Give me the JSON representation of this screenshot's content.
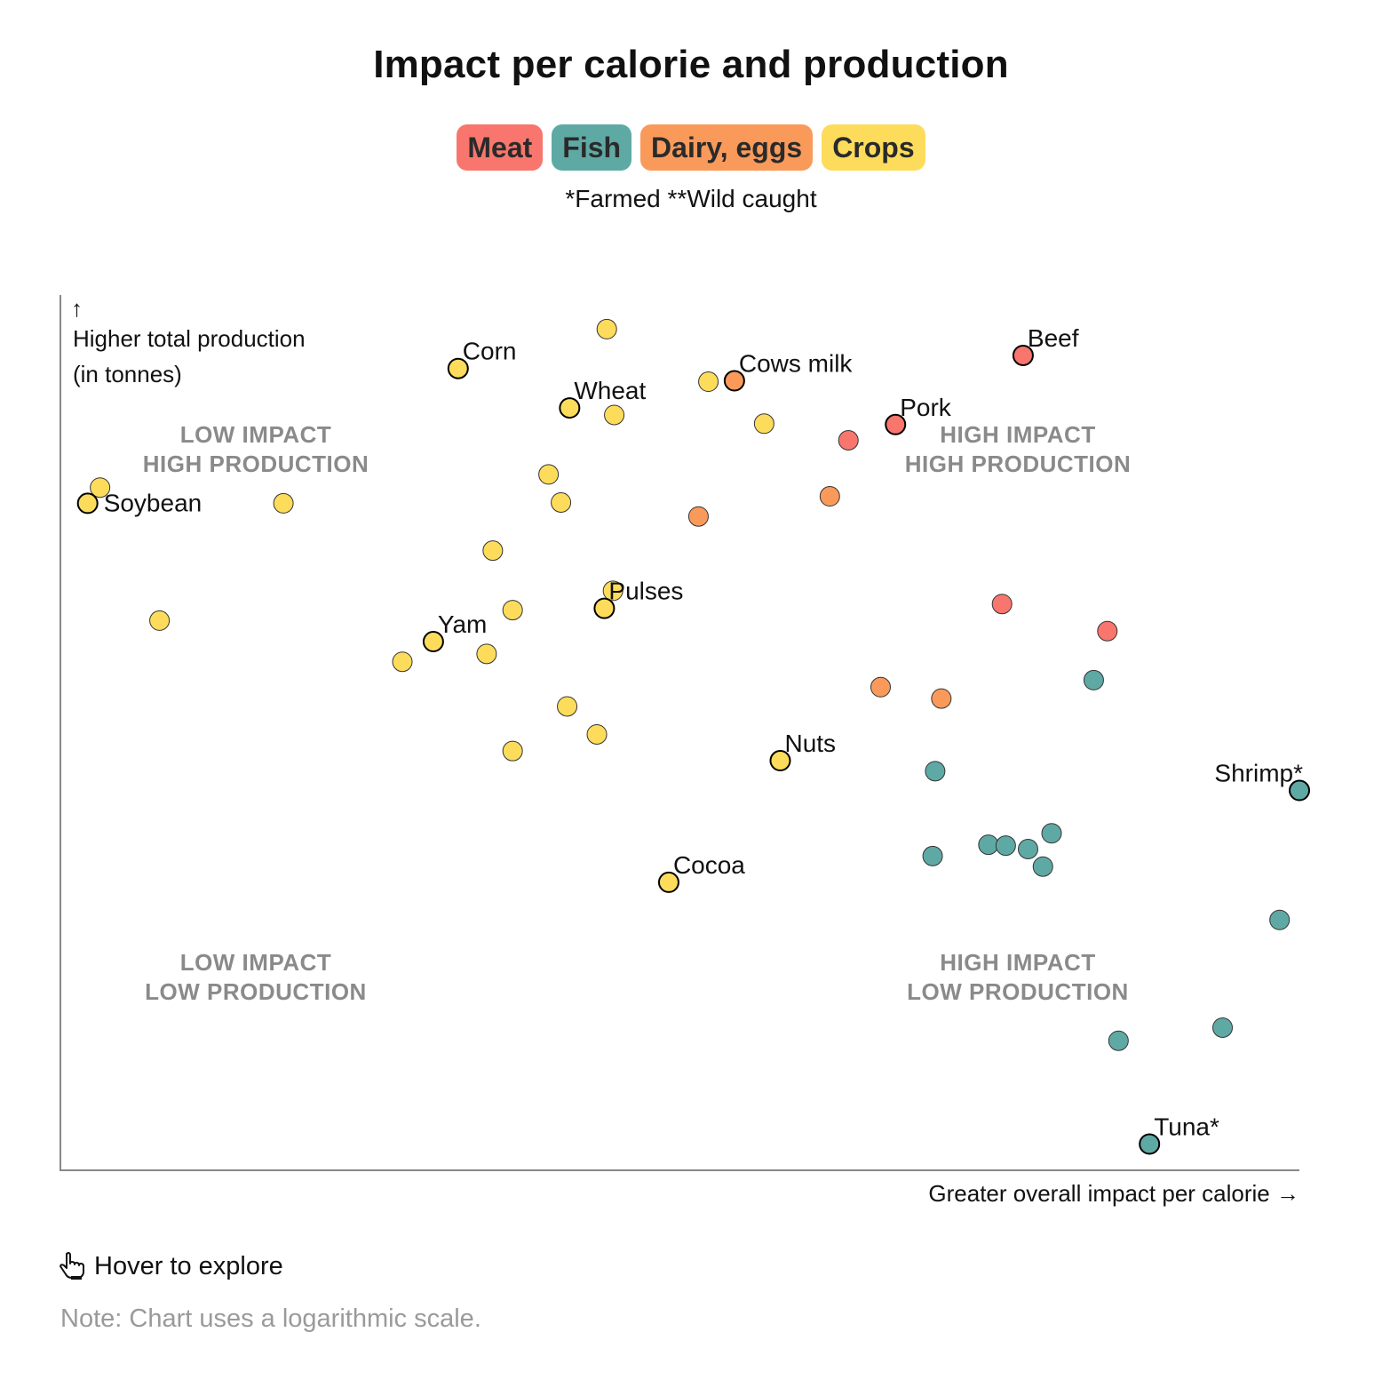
{
  "title": "Impact per calorie and production",
  "legend": [
    {
      "label": "Meat",
      "color": "#f8766d"
    },
    {
      "label": "Fish",
      "color": "#5fa9a5"
    },
    {
      "label": "Dairy, eggs",
      "color": "#fa9a5a"
    },
    {
      "label": "Crops",
      "color": "#fddc5c"
    }
  ],
  "footnote": "*Farmed **Wild caught",
  "hover_text": "Hover to explore",
  "hover_icon": "pointer-hand-icon",
  "note": "Note: Chart uses a logarithmic scale.",
  "chart_data": {
    "type": "scatter",
    "ylabel": [
      "↑",
      "Higher total production",
      "(in tonnes)"
    ],
    "xlabel": "Greater overall impact per calorie →",
    "log_scale": true,
    "xlim": [
      0,
      100
    ],
    "ylim": [
      0,
      100
    ],
    "grid": false,
    "quadrants": [
      {
        "lines": [
          "LOW IMPACT",
          "HIGH PRODUCTION"
        ],
        "position": "top-left"
      },
      {
        "lines": [
          "HIGH IMPACT",
          "HIGH PRODUCTION"
        ],
        "position": "top-right"
      },
      {
        "lines": [
          "LOW IMPACT",
          "LOW PRODUCTION"
        ],
        "position": "bottom-left"
      },
      {
        "lines": [
          "HIGH IMPACT",
          "LOW PRODUCTION"
        ],
        "position": "bottom-right"
      }
    ],
    "points": [
      {
        "x": 3.2,
        "y": 78,
        "cat": "Crops"
      },
      {
        "x": 2.2,
        "y": 76.2,
        "cat": "Crops",
        "label": "Soybean"
      },
      {
        "x": 18,
        "y": 76.2,
        "cat": "Crops"
      },
      {
        "x": 8,
        "y": 62.8,
        "cat": "Crops"
      },
      {
        "x": 32.1,
        "y": 91.6,
        "cat": "Crops",
        "label": "Corn"
      },
      {
        "x": 44.1,
        "y": 96.1,
        "cat": "Crops"
      },
      {
        "x": 41.1,
        "y": 87.1,
        "cat": "Crops",
        "label": "Wheat"
      },
      {
        "x": 44.7,
        "y": 86.3,
        "cat": "Crops"
      },
      {
        "x": 52.3,
        "y": 90.1,
        "cat": "Crops"
      },
      {
        "x": 56.8,
        "y": 85.3,
        "cat": "Crops"
      },
      {
        "x": 39.4,
        "y": 79.5,
        "cat": "Crops"
      },
      {
        "x": 40.4,
        "y": 76.3,
        "cat": "Crops"
      },
      {
        "x": 34.9,
        "y": 70.8,
        "cat": "Crops"
      },
      {
        "x": 44.6,
        "y": 66.2,
        "cat": "Crops"
      },
      {
        "x": 43.9,
        "y": 64.2,
        "cat": "Crops",
        "label": "Pulses"
      },
      {
        "x": 36.5,
        "y": 64.0,
        "cat": "Crops"
      },
      {
        "x": 30.1,
        "y": 60.4,
        "cat": "Crops",
        "label": "Yam"
      },
      {
        "x": 34.4,
        "y": 59.0,
        "cat": "Crops"
      },
      {
        "x": 27.6,
        "y": 58.1,
        "cat": "Crops"
      },
      {
        "x": 40.9,
        "y": 53.0,
        "cat": "Crops"
      },
      {
        "x": 43.3,
        "y": 49.8,
        "cat": "Crops"
      },
      {
        "x": 36.5,
        "y": 47.9,
        "cat": "Crops"
      },
      {
        "x": 58.1,
        "y": 46.8,
        "cat": "Crops",
        "label": "Nuts"
      },
      {
        "x": 49.1,
        "y": 32.9,
        "cat": "Crops",
        "label": "Cocoa"
      },
      {
        "x": 54.4,
        "y": 90.2,
        "cat": "Dairy, eggs",
        "label": "Cows milk"
      },
      {
        "x": 62.1,
        "y": 77.0,
        "cat": "Dairy, eggs"
      },
      {
        "x": 51.5,
        "y": 74.7,
        "cat": "Dairy, eggs"
      },
      {
        "x": 66.2,
        "y": 55.2,
        "cat": "Dairy, eggs"
      },
      {
        "x": 71.1,
        "y": 53.9,
        "cat": "Dairy, eggs"
      },
      {
        "x": 77.7,
        "y": 93.1,
        "cat": "Meat",
        "label": "Beef"
      },
      {
        "x": 67.4,
        "y": 85.2,
        "cat": "Meat",
        "label": "Pork"
      },
      {
        "x": 63.6,
        "y": 83.4,
        "cat": "Meat"
      },
      {
        "x": 76.0,
        "y": 64.7,
        "cat": "Meat"
      },
      {
        "x": 84.5,
        "y": 61.6,
        "cat": "Meat"
      },
      {
        "x": 83.4,
        "y": 56.0,
        "cat": "Fish"
      },
      {
        "x": 70.6,
        "y": 45.6,
        "cat": "Fish"
      },
      {
        "x": 100.0,
        "y": 43.4,
        "cat": "Fish",
        "label": "Shrimp*"
      },
      {
        "x": 80.0,
        "y": 38.5,
        "cat": "Fish"
      },
      {
        "x": 74.9,
        "y": 37.2,
        "cat": "Fish"
      },
      {
        "x": 76.3,
        "y": 37.1,
        "cat": "Fish"
      },
      {
        "x": 78.1,
        "y": 36.7,
        "cat": "Fish"
      },
      {
        "x": 70.4,
        "y": 35.9,
        "cat": "Fish"
      },
      {
        "x": 79.3,
        "y": 34.7,
        "cat": "Fish"
      },
      {
        "x": 98.4,
        "y": 28.6,
        "cat": "Fish"
      },
      {
        "x": 93.8,
        "y": 16.3,
        "cat": "Fish"
      },
      {
        "x": 85.4,
        "y": 14.8,
        "cat": "Fish"
      },
      {
        "x": 87.9,
        "y": 3.0,
        "cat": "Fish",
        "label": "Tuna*"
      }
    ]
  }
}
